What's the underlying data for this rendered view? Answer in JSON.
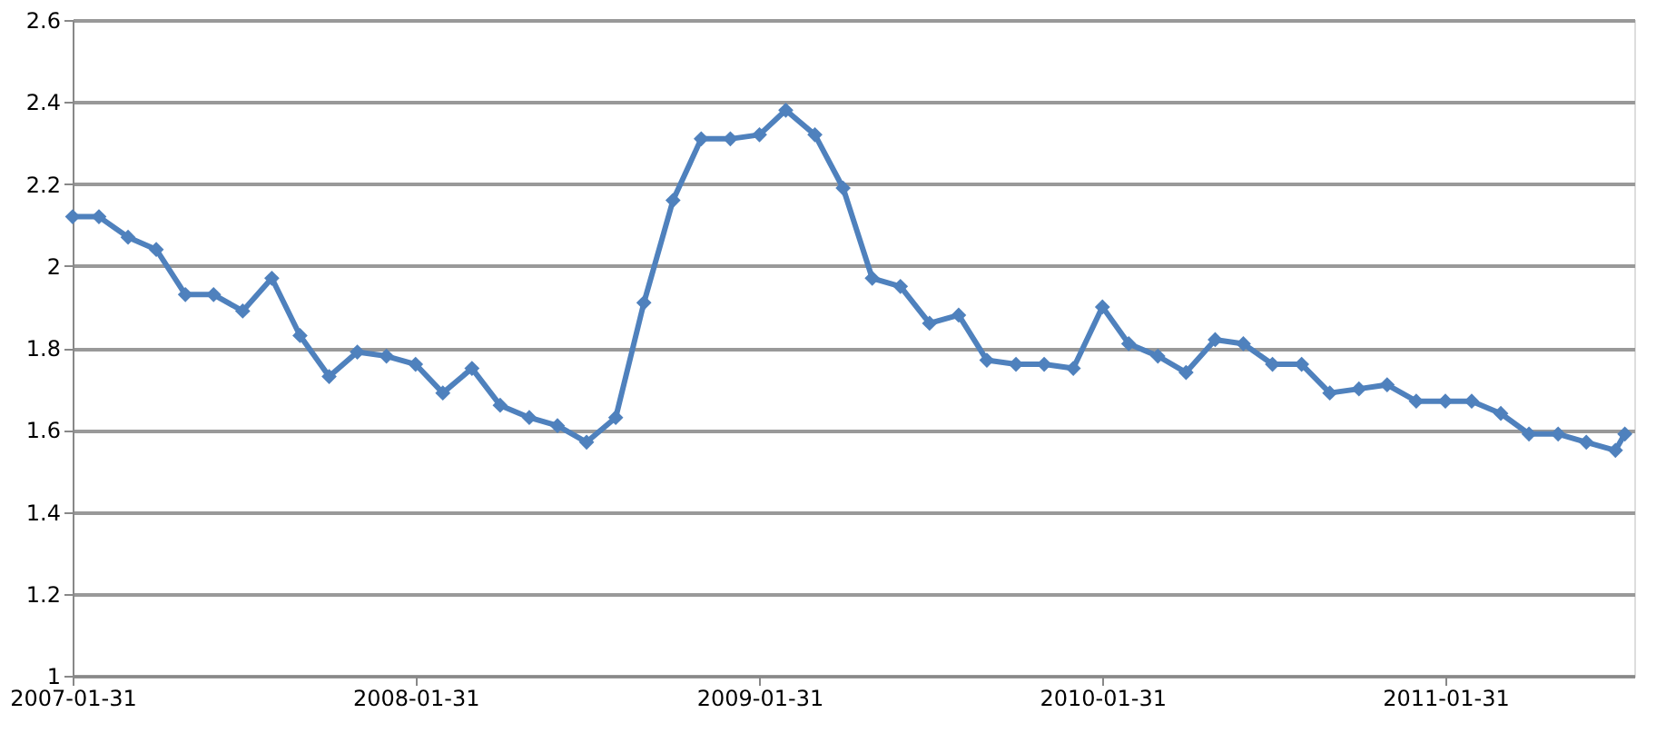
{
  "chart_data": {
    "type": "line",
    "x": [
      "2007-01-31",
      "2007-02-28",
      "2007-03-31",
      "2007-04-30",
      "2007-05-31",
      "2007-06-30",
      "2007-07-31",
      "2007-08-31",
      "2007-09-30",
      "2007-10-31",
      "2007-11-30",
      "2007-12-31",
      "2008-01-31",
      "2008-02-29",
      "2008-03-31",
      "2008-04-30",
      "2008-05-31",
      "2008-06-30",
      "2008-07-31",
      "2008-08-31",
      "2008-09-30",
      "2008-10-31",
      "2008-11-30",
      "2008-12-31",
      "2009-01-31",
      "2009-02-28",
      "2009-03-31",
      "2009-04-30",
      "2009-05-31",
      "2009-06-30",
      "2009-07-31",
      "2009-08-31",
      "2009-09-30",
      "2009-10-31",
      "2009-11-30",
      "2009-12-31",
      "2010-01-31",
      "2010-02-28",
      "2010-03-31",
      "2010-04-30",
      "2010-05-31",
      "2010-06-30",
      "2010-07-31",
      "2010-08-31",
      "2010-09-30",
      "2010-10-31",
      "2010-11-30",
      "2010-12-31",
      "2011-01-31",
      "2011-02-28",
      "2011-03-31",
      "2011-04-30",
      "2011-05-31",
      "2011-06-30",
      "2011-07-31",
      "2011-08-10"
    ],
    "series": [
      {
        "color": "#4f81bd",
        "values": [
          2.12,
          2.12,
          2.07,
          2.04,
          1.93,
          1.93,
          1.89,
          1.97,
          1.83,
          1.73,
          1.79,
          1.78,
          1.76,
          1.69,
          1.75,
          1.66,
          1.63,
          1.61,
          1.57,
          1.63,
          1.91,
          2.16,
          2.31,
          2.31,
          2.32,
          2.38,
          2.32,
          2.19,
          1.97,
          1.95,
          1.86,
          1.88,
          1.77,
          1.76,
          1.76,
          1.75,
          1.9,
          1.81,
          1.78,
          1.74,
          1.82,
          1.81,
          1.76,
          1.76,
          1.69,
          1.7,
          1.71,
          1.67,
          1.67,
          1.67,
          1.64,
          1.59,
          1.59,
          1.57,
          1.55,
          1.59
        ]
      }
    ],
    "xlim": [
      "2007-01-31",
      "2011-08-20"
    ],
    "xticks": [
      "2007-01-31",
      "2008-01-31",
      "2009-01-31",
      "2010-01-31",
      "2011-01-31"
    ],
    "ylim": [
      1,
      2.6
    ],
    "yticks": [
      1,
      1.2,
      1.4,
      1.6,
      1.8,
      2,
      2.2,
      2.4,
      2.6
    ],
    "grid": "y",
    "marker": "diamond",
    "line_style": "solid",
    "legend": false
  }
}
